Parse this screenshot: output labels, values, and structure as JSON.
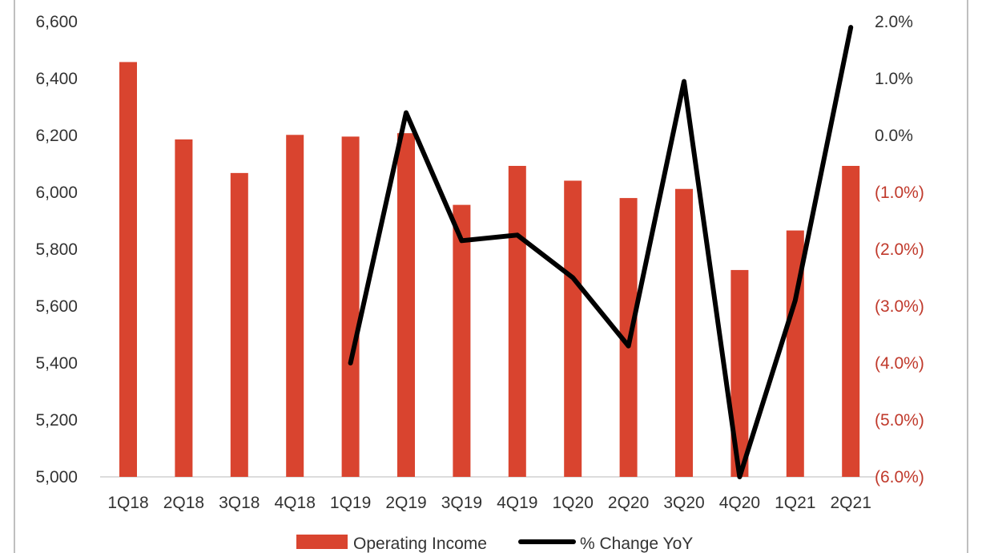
{
  "chart_data": {
    "type": "bar",
    "categories": [
      "1Q18",
      "2Q18",
      "3Q18",
      "4Q18",
      "1Q19",
      "2Q19",
      "3Q19",
      "4Q19",
      "1Q20",
      "2Q20",
      "3Q20",
      "4Q20",
      "1Q21",
      "2Q21"
    ],
    "series": [
      {
        "name": "Operating Income",
        "type": "bar",
        "axis": "left",
        "color": "#d9442f",
        "values": [
          6458,
          6186,
          6068,
          6202,
          6196,
          6208,
          5956,
          6093,
          6041,
          5980,
          6012,
          5727,
          5866,
          6093
        ]
      },
      {
        "name": "% Change YoY",
        "type": "line",
        "axis": "right",
        "color": "#000000",
        "values": [
          null,
          null,
          null,
          null,
          -4.0,
          0.4,
          -1.85,
          -1.75,
          -2.5,
          -3.7,
          0.95,
          -6.0,
          -2.9,
          1.9
        ]
      }
    ],
    "y_left": {
      "min": 5000,
      "max": 6600,
      "ticks": [
        5000,
        5200,
        5400,
        5600,
        5800,
        6000,
        6200,
        6400,
        6600
      ],
      "tick_labels": [
        "5,000",
        "5,200",
        "5,400",
        "5,600",
        "5,800",
        "6,000",
        "6,200",
        "6,400",
        "6,600"
      ]
    },
    "y_right": {
      "min": -6.0,
      "max": 2.0,
      "ticks": [
        2.0,
        1.0,
        0.0,
        -1.0,
        -2.0,
        -3.0,
        -4.0,
        -5.0,
        -6.0
      ],
      "tick_labels": [
        "2.0%",
        "1.0%",
        "0.0%",
        "(1.0%)",
        "(2.0%)",
        "(3.0%)",
        "(4.0%)",
        "(5.0%)",
        "(6.0%)"
      ],
      "negative_label_color": "#c0392b"
    },
    "grid": false,
    "legend_position": "bottom"
  }
}
